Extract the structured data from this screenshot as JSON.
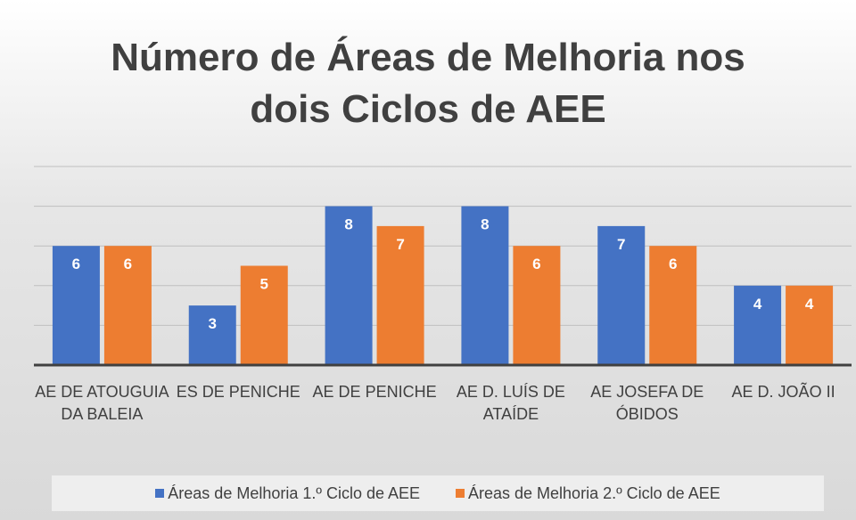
{
  "chart_data": {
    "type": "bar",
    "title": "Número de Áreas de Melhoria nos dois Ciclos de AEE",
    "categories": [
      "AE DE ATOUGUIA DA BALEIA",
      "ES DE PENICHE",
      "AE DE PENICHE",
      "AE D. LUÍS DE ATAÍDE",
      "AE JOSEFA DE ÓBIDOS",
      "AE D. JOÃO II"
    ],
    "series": [
      {
        "name": "Áreas de Melhoria 1.º Ciclo de AEE",
        "color": "#4472c4",
        "values": [
          6,
          3,
          8,
          8,
          7,
          4
        ]
      },
      {
        "name": "Áreas de Melhoria 2.º Ciclo de AEE",
        "color": "#ed7d31",
        "values": [
          6,
          5,
          7,
          6,
          6,
          4
        ]
      }
    ],
    "ylim": [
      0,
      10
    ],
    "yticks": [
      2,
      4,
      6,
      8,
      10
    ],
    "grid": true,
    "legend": "bottom"
  }
}
